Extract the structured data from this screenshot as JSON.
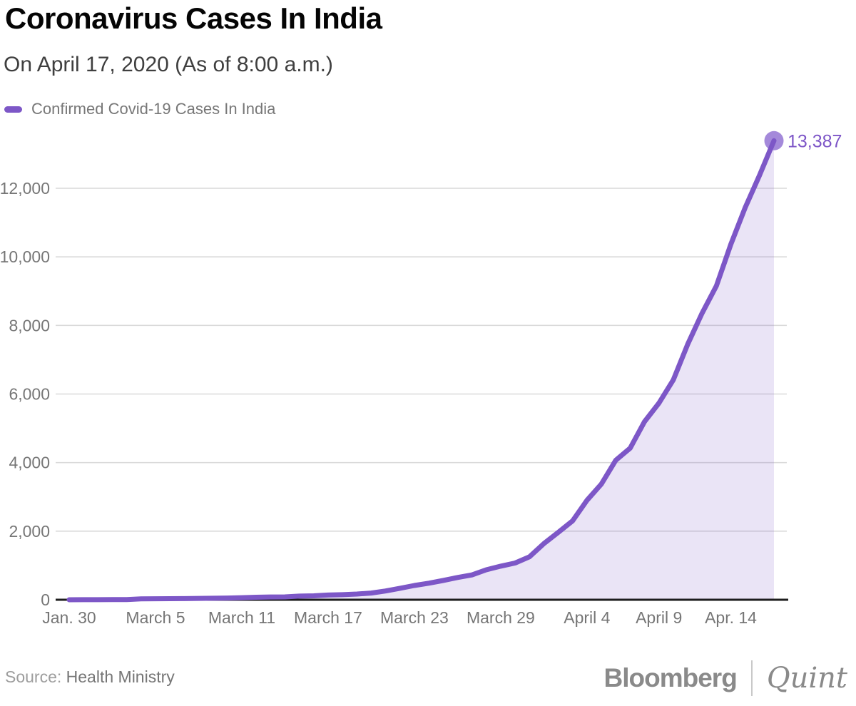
{
  "header": {
    "title": "Coronavirus Cases In India",
    "subtitle": "On April 17, 2020 (As of 8:00 a.m.)"
  },
  "legend": {
    "label": "Confirmed Covid-19 Cases In India"
  },
  "colors": {
    "line": "#7d57c7",
    "marker": "#a489da",
    "area_fill": "#7d57c7",
    "area_opacity": 0.16,
    "value_label": "#7d55c7",
    "grid": "#d9d9d9",
    "axis": "#1d1d1d",
    "tick_text": "#767676"
  },
  "chart_data": {
    "type": "area",
    "title": "Coronavirus Cases In India",
    "subtitle": "On April 17, 2020 (As of 8:00 a.m.)",
    "series_name": "Confirmed Covid-19 Cases In India",
    "x": [
      "Jan. 30",
      "Feb. 2",
      "Feb. 3",
      "March 2",
      "March 3",
      "March 4",
      "March 5",
      "March 6",
      "March 7",
      "March 8",
      "March 9",
      "March 10",
      "March 11",
      "March 12",
      "March 13",
      "March 14",
      "March 15",
      "March 16",
      "March 17",
      "March 18",
      "March 19",
      "March 20",
      "March 21",
      "March 22",
      "March 23",
      "March 24",
      "March 25",
      "March 26",
      "March 27",
      "March 28",
      "March 29",
      "March 30",
      "March 31",
      "April 1",
      "April 2",
      "April 3",
      "April 4",
      "April 5",
      "April 6",
      "April 7",
      "April 8",
      "April 9",
      "April 10",
      "April 11",
      "April 12",
      "April 13",
      "April 14",
      "April 15",
      "April 16",
      "April 17"
    ],
    "values": [
      1,
      2,
      3,
      5,
      6,
      28,
      30,
      31,
      34,
      39,
      44,
      50,
      60,
      73,
      81,
      84,
      107,
      114,
      137,
      147,
      166,
      195,
      256,
      334,
      415,
      482,
      562,
      649,
      724,
      873,
      979,
      1071,
      1251,
      1637,
      1965,
      2301,
      2902,
      3374,
      4067,
      4421,
      5194,
      5734,
      6412,
      7447,
      8356,
      9152,
      10363,
      11439,
      12380,
      13387
    ],
    "end_label": "13,387",
    "ylim": [
      0,
      13387
    ],
    "grid": "horizontal",
    "legend_position": "top-left",
    "yticks": [
      {
        "value": 0,
        "label": "0"
      },
      {
        "value": 2000,
        "label": "2,000"
      },
      {
        "value": 4000,
        "label": "4,000"
      },
      {
        "value": 6000,
        "label": "6,000"
      },
      {
        "value": 8000,
        "label": "8,000"
      },
      {
        "value": 10000,
        "label": "10,000"
      },
      {
        "value": 12000,
        "label": "12,000"
      }
    ],
    "xticks": [
      {
        "label": "Jan. 30",
        "index": 0
      },
      {
        "label": "March 5",
        "index": 6
      },
      {
        "label": "March 11",
        "index": 12
      },
      {
        "label": "March 17",
        "index": 18
      },
      {
        "label": "March 23",
        "index": 24
      },
      {
        "label": "March 29",
        "index": 30
      },
      {
        "label": "April 4",
        "index": 36
      },
      {
        "label": "April 9",
        "index": 41
      },
      {
        "label": "Apr. 14",
        "index": 46
      }
    ]
  },
  "footer": {
    "source_label": "Source:",
    "source_value": "Health Ministry",
    "logo_primary": "Bloomberg",
    "logo_secondary": "Quint"
  }
}
